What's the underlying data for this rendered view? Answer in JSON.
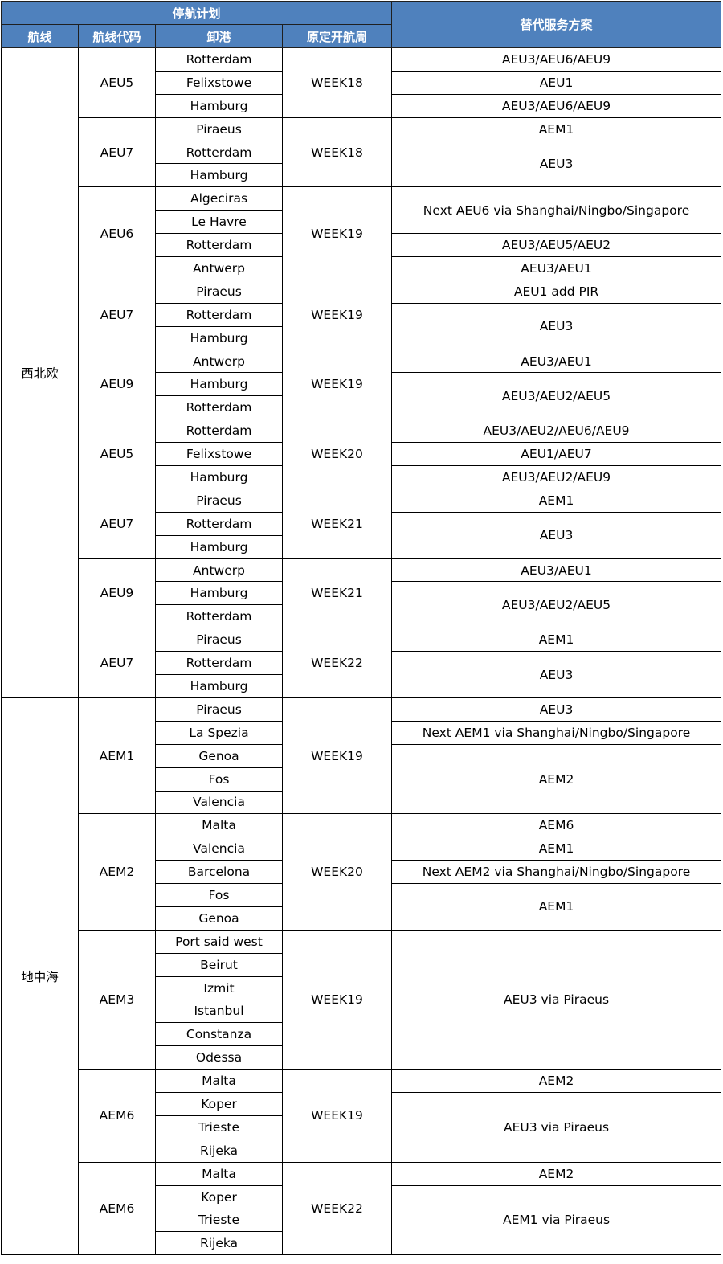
{
  "header": {
    "group_title": "停航计划",
    "alt_title": "替代服务方案",
    "columns": [
      "航线",
      "航线代码",
      "卸港",
      "原定开航周"
    ],
    "header_color": "#4f81bd"
  },
  "regions": [
    {
      "name": "西北欧",
      "services": [
        {
          "code": "AEU5",
          "week": "WEEK18",
          "ports": [
            "Rotterdam",
            "Felixstowe",
            "Hamburg"
          ],
          "alternatives": [
            {
              "text": "AEU3/AEU6/AEU9",
              "rows": 1
            },
            {
              "text": "AEU1",
              "rows": 1
            },
            {
              "text": "AEU3/AEU6/AEU9",
              "rows": 1
            }
          ]
        },
        {
          "code": "AEU7",
          "week": "WEEK18",
          "ports": [
            "Piraeus",
            "Rotterdam",
            "Hamburg"
          ],
          "alternatives": [
            {
              "text": "AEM1",
              "rows": 1
            },
            {
              "text": "AEU3",
              "rows": 2
            }
          ]
        },
        {
          "code": "AEU6",
          "week": "WEEK19",
          "ports": [
            "Algeciras",
            "Le Havre",
            "Rotterdam",
            "Antwerp"
          ],
          "alternatives": [
            {
              "text": "Next AEU6 via Shanghai/Ningbo/Singapore",
              "rows": 2
            },
            {
              "text": "AEU3/AEU5/AEU2",
              "rows": 1
            },
            {
              "text": "AEU3/AEU1",
              "rows": 1
            }
          ]
        },
        {
          "code": "AEU7",
          "week": "WEEK19",
          "ports": [
            "Piraeus",
            "Rotterdam",
            "Hamburg"
          ],
          "alternatives": [
            {
              "text": "AEU1 add PIR",
              "rows": 1
            },
            {
              "text": "AEU3",
              "rows": 2
            }
          ]
        },
        {
          "code": "AEU9",
          "week": "WEEK19",
          "ports": [
            "Antwerp",
            "Hamburg",
            "Rotterdam"
          ],
          "alternatives": [
            {
              "text": "AEU3/AEU1",
              "rows": 1
            },
            {
              "text": "AEU3/AEU2/AEU5",
              "rows": 2
            }
          ]
        },
        {
          "code": "AEU5",
          "week": "WEEK20",
          "ports": [
            "Rotterdam",
            "Felixstowe",
            "Hamburg"
          ],
          "alternatives": [
            {
              "text": "AEU3/AEU2/AEU6/AEU9",
              "rows": 1
            },
            {
              "text": "AEU1/AEU7",
              "rows": 1
            },
            {
              "text": "AEU3/AEU2/AEU9",
              "rows": 1
            }
          ]
        },
        {
          "code": "AEU7",
          "week": "WEEK21",
          "ports": [
            "Piraeus",
            "Rotterdam",
            "Hamburg"
          ],
          "alternatives": [
            {
              "text": "AEM1",
              "rows": 1
            },
            {
              "text": "AEU3",
              "rows": 2
            }
          ]
        },
        {
          "code": "AEU9",
          "week": "WEEK21",
          "ports": [
            "Antwerp",
            "Hamburg",
            "Rotterdam"
          ],
          "alternatives": [
            {
              "text": "AEU3/AEU1",
              "rows": 1
            },
            {
              "text": "AEU3/AEU2/AEU5",
              "rows": 2
            }
          ]
        },
        {
          "code": "AEU7",
          "week": "WEEK22",
          "ports": [
            "Piraeus",
            "Rotterdam",
            "Hamburg"
          ],
          "alternatives": [
            {
              "text": "AEM1",
              "rows": 1
            },
            {
              "text": "AEU3",
              "rows": 2
            }
          ]
        }
      ]
    },
    {
      "name": "地中海",
      "services": [
        {
          "code": "AEM1",
          "week": "WEEK19",
          "ports": [
            "Piraeus",
            "La Spezia",
            "Genoa",
            "Fos",
            "Valencia"
          ],
          "alternatives": [
            {
              "text": "AEU3",
              "rows": 1
            },
            {
              "text": "Next AEM1 via Shanghai/Ningbo/Singapore",
              "rows": 1
            },
            {
              "text": "AEM2",
              "rows": 3
            }
          ]
        },
        {
          "code": "AEM2",
          "week": "WEEK20",
          "ports": [
            "Malta",
            "Valencia",
            "Barcelona",
            "Fos",
            "Genoa"
          ],
          "alternatives": [
            {
              "text": "AEM6",
              "rows": 1
            },
            {
              "text": "AEM1",
              "rows": 1
            },
            {
              "text": "Next AEM2 via Shanghai/Ningbo/Singapore",
              "rows": 1
            },
            {
              "text": "AEM1",
              "rows": 2
            }
          ]
        },
        {
          "code": "AEM3",
          "week": "WEEK19",
          "ports": [
            "Port said west",
            "Beirut",
            "Izmit",
            "Istanbul",
            "Constanza",
            "Odessa"
          ],
          "alternatives": [
            {
              "text": "AEU3 via Piraeus",
              "rows": 6
            }
          ]
        },
        {
          "code": "AEM6",
          "week": "WEEK19",
          "ports": [
            "Malta",
            "Koper",
            "Trieste",
            "Rijeka"
          ],
          "alternatives": [
            {
              "text": "AEM2",
              "rows": 1
            },
            {
              "text": "AEU3 via Piraeus",
              "rows": 3
            }
          ]
        },
        {
          "code": "AEM6",
          "week": "WEEK22",
          "ports": [
            "Malta",
            "Koper",
            "Trieste",
            "Rijeka"
          ],
          "alternatives": [
            {
              "text": "AEM2",
              "rows": 1
            },
            {
              "text": "AEM1 via Piraeus",
              "rows": 3
            }
          ]
        }
      ]
    }
  ]
}
